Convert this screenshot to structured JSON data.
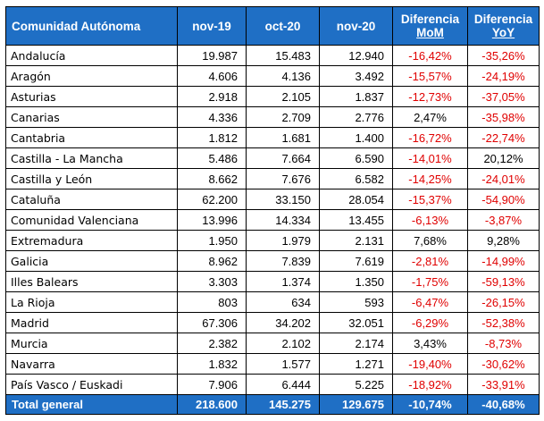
{
  "table": {
    "headers": {
      "region": "Comunidad Autónoma",
      "nov19": "nov-19",
      "oct20": "oct-20",
      "nov20": "nov-20",
      "mom_line1": "Diferencia",
      "mom_line2": "MoM",
      "yoy_line1": "Diferencia",
      "yoy_line2": "YoY"
    },
    "rows": [
      {
        "region": "Andalucía",
        "nov19": "19.987",
        "oct20": "15.483",
        "nov20": "12.940",
        "mom": "-16,42%",
        "yoy": "-35,26%"
      },
      {
        "region": "Aragón",
        "nov19": "4.606",
        "oct20": "4.136",
        "nov20": "3.492",
        "mom": "-15,57%",
        "yoy": "-24,19%"
      },
      {
        "region": "Asturias",
        "nov19": "2.918",
        "oct20": "2.105",
        "nov20": "1.837",
        "mom": "-12,73%",
        "yoy": "-37,05%"
      },
      {
        "region": "Canarias",
        "nov19": "4.336",
        "oct20": "2.709",
        "nov20": "2.776",
        "mom": "2,47%",
        "yoy": "-35,98%"
      },
      {
        "region": "Cantabria",
        "nov19": "1.812",
        "oct20": "1.681",
        "nov20": "1.400",
        "mom": "-16,72%",
        "yoy": "-22,74%"
      },
      {
        "region": "Castilla - La Mancha",
        "nov19": "5.486",
        "oct20": "7.664",
        "nov20": "6.590",
        "mom": "-14,01%",
        "yoy": "20,12%"
      },
      {
        "region": "Castilla y León",
        "nov19": "8.662",
        "oct20": "7.676",
        "nov20": "6.582",
        "mom": "-14,25%",
        "yoy": "-24,01%"
      },
      {
        "region": "Cataluña",
        "nov19": "62.200",
        "oct20": "33.150",
        "nov20": "28.054",
        "mom": "-15,37%",
        "yoy": "-54,90%"
      },
      {
        "region": "Comunidad Valenciana",
        "nov19": "13.996",
        "oct20": "14.334",
        "nov20": "13.455",
        "mom": "-6,13%",
        "yoy": "-3,87%"
      },
      {
        "region": "Extremadura",
        "nov19": "1.950",
        "oct20": "1.979",
        "nov20": "2.131",
        "mom": "7,68%",
        "yoy": "9,28%"
      },
      {
        "region": "Galicia",
        "nov19": "8.962",
        "oct20": "7.839",
        "nov20": "7.619",
        "mom": "-2,81%",
        "yoy": "-14,99%"
      },
      {
        "region": "Illes Balears",
        "nov19": "3.303",
        "oct20": "1.374",
        "nov20": "1.350",
        "mom": "-1,75%",
        "yoy": "-59,13%"
      },
      {
        "region": "La Rioja",
        "nov19": "803",
        "oct20": "634",
        "nov20": "593",
        "mom": "-6,47%",
        "yoy": "-26,15%"
      },
      {
        "region": "Madrid",
        "nov19": "67.306",
        "oct20": "34.202",
        "nov20": "32.051",
        "mom": "-6,29%",
        "yoy": "-52,38%"
      },
      {
        "region": "Murcia",
        "nov19": "2.382",
        "oct20": "2.102",
        "nov20": "2.174",
        "mom": "3,43%",
        "yoy": "-8,73%"
      },
      {
        "region": "Navarra",
        "nov19": "1.832",
        "oct20": "1.577",
        "nov20": "1.271",
        "mom": "-19,40%",
        "yoy": "-30,62%"
      },
      {
        "region": "País Vasco / Euskadi",
        "nov19": "7.906",
        "oct20": "6.444",
        "nov20": "5.225",
        "mom": "-18,92%",
        "yoy": "-33,91%"
      }
    ],
    "total": {
      "region": "Total general",
      "nov19": "218.600",
      "oct20": "145.275",
      "nov20": "129.675",
      "mom": "-10,74%",
      "yoy": "-40,68%"
    }
  },
  "colors": {
    "header_bg": "#1f6fc5",
    "header_text": "#ffffff",
    "negative": "#e00000",
    "positive": "#000000",
    "border": "#000000"
  }
}
